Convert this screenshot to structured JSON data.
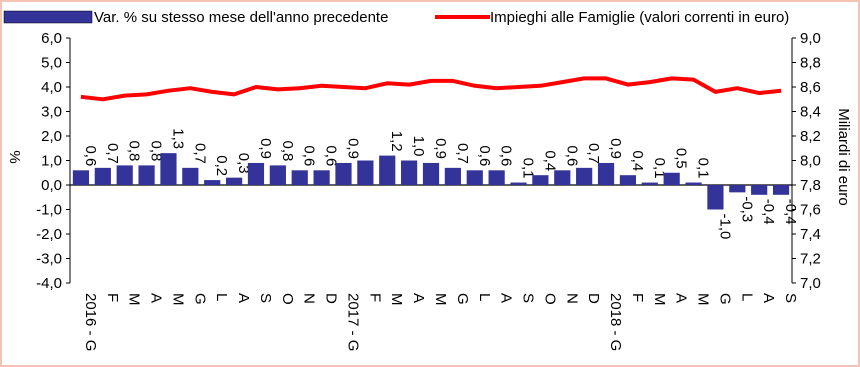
{
  "chart_data": {
    "type": "bar+line",
    "legend_position": "top",
    "grid": false,
    "categories": [
      "2016 - G",
      "F",
      "M",
      "A",
      "M",
      "G",
      "L",
      "A",
      "S",
      "O",
      "N",
      "D",
      "2017 - G",
      "F",
      "M",
      "A",
      "M",
      "G",
      "L",
      "A",
      "S",
      "O",
      "N",
      "D",
      "2018 - G",
      "F",
      "M",
      "A",
      "M",
      "G",
      "L",
      "A",
      "S"
    ],
    "series": [
      {
        "name": "Var. % su stesso mese dell'anno precedente",
        "type": "bar",
        "axis": "left",
        "color": "#333399",
        "values": [
          0.6,
          0.7,
          0.8,
          0.8,
          1.3,
          0.7,
          0.2,
          0.3,
          0.9,
          0.8,
          0.6,
          0.6,
          0.9,
          1.0,
          1.2,
          1.0,
          0.9,
          0.7,
          0.6,
          0.6,
          0.1,
          0.4,
          0.6,
          0.7,
          0.9,
          0.4,
          0.1,
          0.5,
          0.1,
          -1.0,
          -0.3,
          -0.4,
          -0.4
        ],
        "labels": [
          "0,6",
          "0,7",
          "0,8",
          "0,8",
          "1,3",
          "0,7",
          "0,2",
          "0,3",
          "0,9",
          "0,8",
          "0,6",
          "0,6",
          "0,9",
          "",
          "1,2",
          "1,0",
          "0,9",
          "0,7",
          "0,6",
          "0,6",
          "0,1",
          "0,4",
          "0,6",
          "0,7",
          "0,9",
          "0,4",
          "0,1",
          "0,5",
          "0,1",
          "-1,0",
          "-0,3",
          "-0,4",
          "-0,4"
        ]
      },
      {
        "name": "Impieghi alle Famiglie (valori correnti in euro)",
        "type": "line",
        "axis": "right",
        "color": "#ff0000",
        "values": [
          8.52,
          8.5,
          8.53,
          8.54,
          8.57,
          8.59,
          8.56,
          8.54,
          8.6,
          8.58,
          8.59,
          8.61,
          8.6,
          8.59,
          8.63,
          8.62,
          8.65,
          8.65,
          8.61,
          8.59,
          8.6,
          8.61,
          8.64,
          8.67,
          8.67,
          8.62,
          8.64,
          8.67,
          8.66,
          8.56,
          8.59,
          8.55,
          8.57
        ]
      }
    ],
    "left_axis": {
      "label": "%",
      "min": -4.0,
      "max": 6.0,
      "ticks": [
        "6,0",
        "5,0",
        "4,0",
        "3,0",
        "2,0",
        "1,0",
        "0,0",
        "-1,0",
        "-2,0",
        "-3,0",
        "-4,0"
      ]
    },
    "right_axis": {
      "label": "Miliardi di euro",
      "min": 7.0,
      "max": 9.0,
      "ticks": [
        "9,0",
        "8,8",
        "8,6",
        "8,4",
        "8,2",
        "8,0",
        "7,8",
        "7,6",
        "7,4",
        "7,2",
        "7,0"
      ]
    }
  }
}
